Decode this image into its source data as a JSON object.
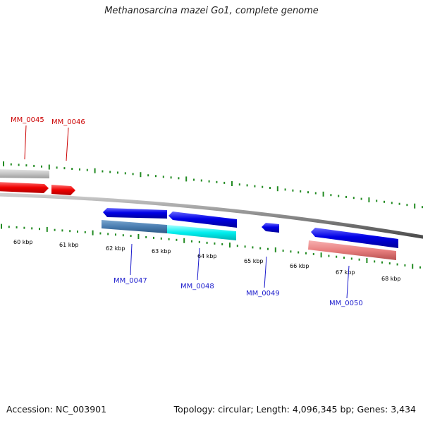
{
  "title": "Methanosarcina mazei Go1, complete genome",
  "footer": {
    "accession": "Accession: NC_003901",
    "summary": "Topology: circular; Length: 4,096,345 bp; Genes: 3,434"
  },
  "colors": {
    "tick": "#228b22",
    "backbone": "#808080",
    "forward_label": "#cc0000",
    "reverse_label": "#1a1acc"
  },
  "map": {
    "kbp_labels": [
      "60 kbp",
      "61 kbp",
      "62 kbp",
      "63 kbp",
      "64 kbp",
      "65 kbp",
      "66 kbp",
      "67 kbp",
      "68 kbp"
    ],
    "genes": [
      {
        "id": "MM_0045",
        "strand": "forward"
      },
      {
        "id": "MM_0046",
        "strand": "forward"
      },
      {
        "id": "MM_0047",
        "strand": "reverse"
      },
      {
        "id": "MM_0048",
        "strand": "reverse"
      },
      {
        "id": "MM_0049",
        "strand": "reverse"
      },
      {
        "id": "MM_0050",
        "strand": "reverse"
      }
    ]
  }
}
